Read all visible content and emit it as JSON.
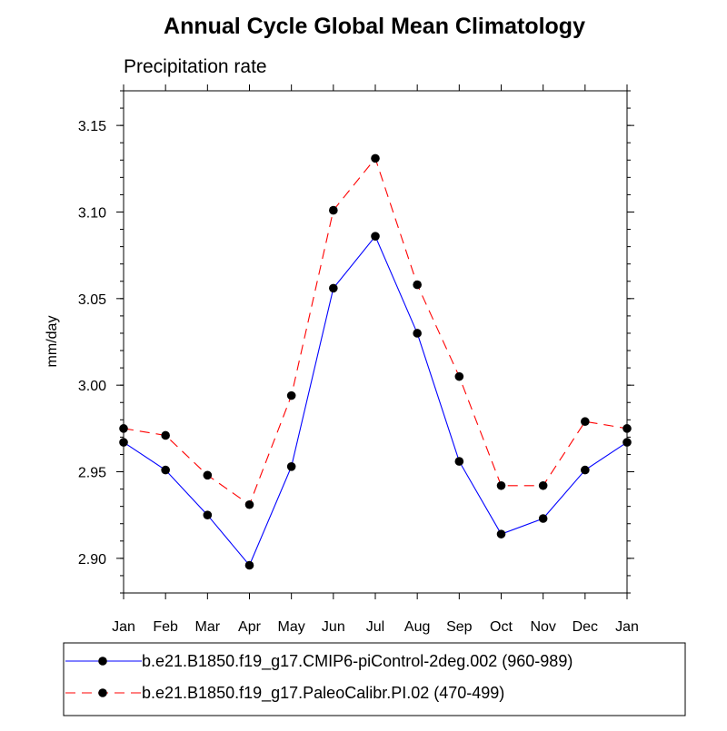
{
  "chart_data": {
    "type": "line",
    "title": "Annual Cycle Global Mean Climatology",
    "subtitle": "Precipitation rate",
    "xlabel": "",
    "ylabel": "mm/day",
    "categories": [
      "Jan",
      "Feb",
      "Mar",
      "Apr",
      "May",
      "Jun",
      "Jul",
      "Aug",
      "Sep",
      "Oct",
      "Nov",
      "Dec",
      "Jan"
    ],
    "ylim": [
      2.88,
      3.17
    ],
    "yticks": [
      "2.90",
      "2.95",
      "3.00",
      "3.05",
      "3.10",
      "3.15"
    ],
    "grid": false,
    "legend_position": "bottom",
    "series": [
      {
        "name": "b.e21.B1850.f19_g17.CMIP6-piControl-2deg.002 (960-989)",
        "color": "#0000ff",
        "line_style": "solid",
        "marker": "filled-circle",
        "values": [
          2.967,
          2.951,
          2.925,
          2.896,
          2.953,
          3.056,
          3.086,
          3.03,
          2.956,
          2.914,
          2.923,
          2.951,
          2.967
        ]
      },
      {
        "name": "b.e21.B1850.f19_g17.PaleoCalibr.PI.02 (470-499)",
        "color": "#ff0000",
        "line_style": "dashed",
        "marker": "filled-circle",
        "values": [
          2.975,
          2.971,
          2.948,
          2.931,
          2.994,
          3.101,
          3.131,
          3.058,
          3.005,
          2.942,
          2.942,
          2.979,
          2.975
        ]
      }
    ]
  }
}
